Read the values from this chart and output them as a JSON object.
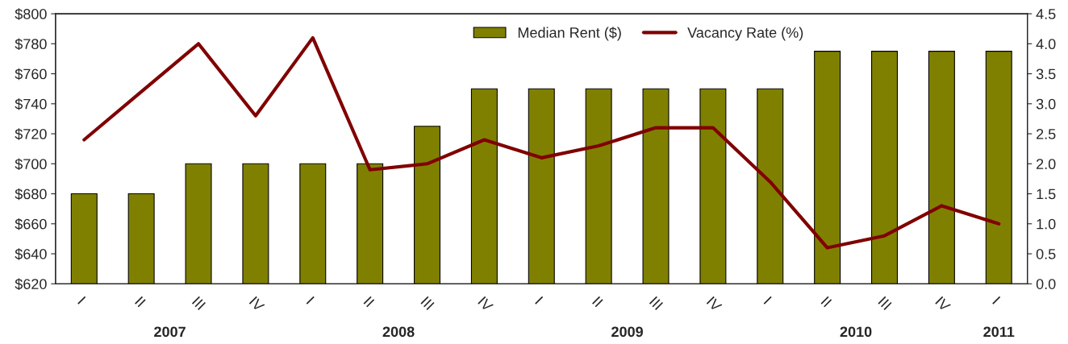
{
  "chart_data": {
    "type": "bar",
    "categories": [
      "I",
      "II",
      "III",
      "IV",
      "I",
      "II",
      "III",
      "IV",
      "I",
      "II",
      "III",
      "IV",
      "I",
      "II",
      "III",
      "IV",
      "I"
    ],
    "series": [
      {
        "name": "Median Rent ($)",
        "color": "#808000",
        "values": [
          680,
          680,
          700,
          700,
          700,
          700,
          725,
          750,
          750,
          750,
          750,
          750,
          750,
          775,
          775,
          775,
          775
        ]
      },
      {
        "name": "Vacancy Rate (%)",
        "type": "line",
        "axis": "y2",
        "color": "#800000",
        "values": [
          2.4,
          3.2,
          4.0,
          2.8,
          4.1,
          1.9,
          2.0,
          2.4,
          2.1,
          2.3,
          2.6,
          2.6,
          1.7,
          0.6,
          0.8,
          1.3,
          1.0
        ]
      }
    ],
    "annotations": [
      "2007",
      "2008",
      "2009",
      "2010",
      "2011"
    ],
    "ylim": [
      620,
      800
    ],
    "yticks": [
      {
        "value": 620,
        "label": "$620"
      },
      {
        "value": 640,
        "label": "$640"
      },
      {
        "value": 660,
        "label": "$660"
      },
      {
        "value": 680,
        "label": "$680"
      },
      {
        "value": 700,
        "label": "$700"
      },
      {
        "value": 720,
        "label": "$720"
      },
      {
        "value": 740,
        "label": "$740"
      },
      {
        "value": 760,
        "label": "$760"
      },
      {
        "value": 780,
        "label": "$780"
      },
      {
        "value": 800,
        "label": "$800"
      }
    ],
    "y2lim": [
      0,
      4.5
    ],
    "y2ticks": [
      {
        "value": 0,
        "label": "0.0"
      },
      {
        "value": 0.5,
        "label": "0.5"
      },
      {
        "value": 1,
        "label": "1.0"
      },
      {
        "value": 1.5,
        "label": "1.5"
      },
      {
        "value": 2,
        "label": "2.0"
      },
      {
        "value": 2.5,
        "label": "2.5"
      },
      {
        "value": 3,
        "label": "3.0"
      },
      {
        "value": 3.5,
        "label": "3.5"
      },
      {
        "value": 4,
        "label": "4.0"
      },
      {
        "value": 4.5,
        "label": "4.5"
      }
    ],
    "legend": "top",
    "grid": false
  }
}
